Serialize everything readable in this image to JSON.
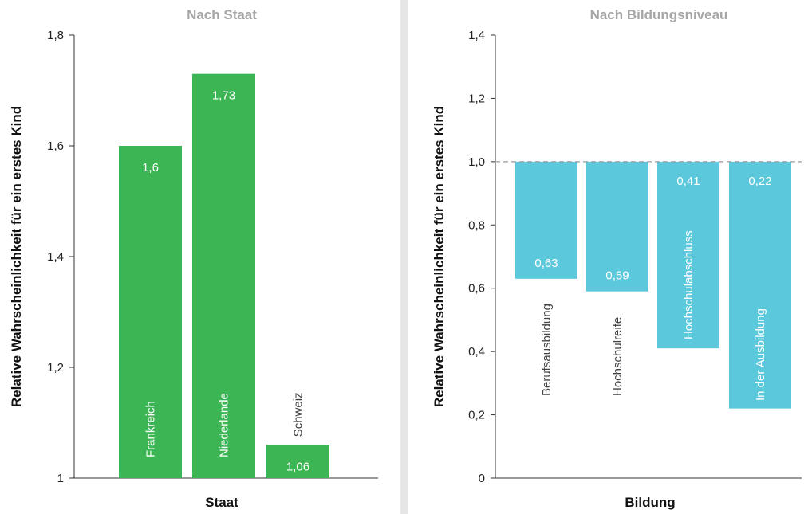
{
  "chart_data": [
    {
      "type": "bar",
      "title": "Nach Staat",
      "xlabel": "Staat",
      "ylabel": "Relative Wahrscheinlichkeit für ein erstes Kind",
      "ylim": [
        1,
        1.8
      ],
      "yticks": [
        "1",
        "1,2",
        "1,4",
        "1,6",
        "1,8"
      ],
      "yticks_values": [
        1,
        1.2,
        1.4,
        1.6,
        1.8
      ],
      "categories": [
        "Frankreich",
        "Niederlande",
        "Schweiz"
      ],
      "values": [
        1.6,
        1.73,
        1.06
      ],
      "data_labels": [
        "1,6",
        "1,73",
        "1,06"
      ],
      "color": "#3cb554"
    },
    {
      "type": "bar",
      "title": "Nach Bildungsniveau",
      "xlabel": "Bildung",
      "ylabel": "Relative Wahrscheinlichkeit für ein erstes Kind",
      "ylim": [
        0,
        1.4
      ],
      "yticks": [
        "0",
        "0,2",
        "0,4",
        "0,6",
        "0,8",
        "1,0",
        "1,2",
        "1,4"
      ],
      "yticks_values": [
        0,
        0.2,
        0.4,
        0.6,
        0.8,
        1.0,
        1.2,
        1.4
      ],
      "baseline": 1.0,
      "categories": [
        "Berufsausbildung",
        "Hochschulreife",
        "Hochschulabschluss",
        "In der Ausbildung"
      ],
      "values": [
        0.63,
        0.59,
        0.41,
        0.22
      ],
      "data_labels": [
        "0,63",
        "0,59",
        "0,41",
        "0,22"
      ],
      "color": "#5bc8dc"
    }
  ]
}
